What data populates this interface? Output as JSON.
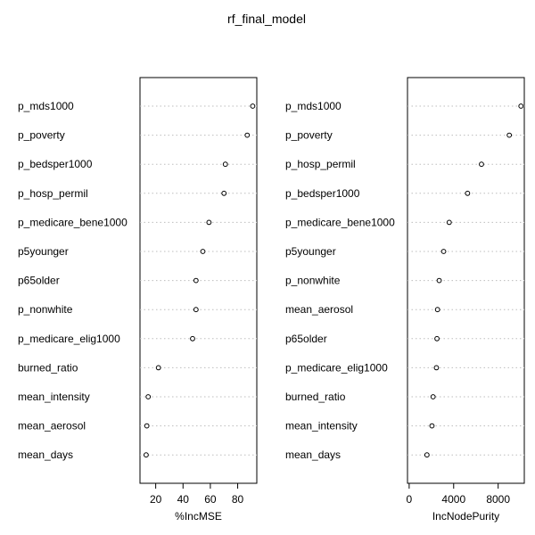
{
  "chart_data": {
    "type": "dotchart",
    "title": "rf_final_model",
    "grid": true,
    "panels": [
      {
        "xlabel": "%IncMSE",
        "xticks": [
          20,
          40,
          60,
          80
        ],
        "xlim": [
          8.5,
          94
        ],
        "labels": [
          "p_mds1000",
          "p_poverty",
          "p_bedsper1000",
          "p_hosp_permil",
          "p_medicare_bene1000",
          "p5younger",
          "p65older",
          "p_nonwhite",
          "p_medicare_elig1000",
          "burned_ratio",
          "mean_intensity",
          "mean_aerosol",
          "mean_days"
        ],
        "values": [
          91,
          87,
          71,
          70,
          59,
          54.5,
          49.5,
          49.5,
          47,
          22,
          14.5,
          13.5,
          13
        ]
      },
      {
        "xlabel": "IncNodePurity",
        "xticks": [
          0,
          4000,
          8000
        ],
        "xlim": [
          -150,
          10350
        ],
        "labels": [
          "p_mds1000",
          "p_poverty",
          "p_hosp_permil",
          "p_bedsper1000",
          "p_medicare_bene1000",
          "p5younger",
          "p_nonwhite",
          "mean_aerosol",
          "p65older",
          "p_medicare_elig1000",
          "burned_ratio",
          "mean_intensity",
          "mean_days"
        ],
        "values": [
          10050,
          9000,
          6500,
          5250,
          3600,
          3100,
          2700,
          2550,
          2500,
          2450,
          2150,
          2050,
          1600
        ]
      }
    ]
  }
}
